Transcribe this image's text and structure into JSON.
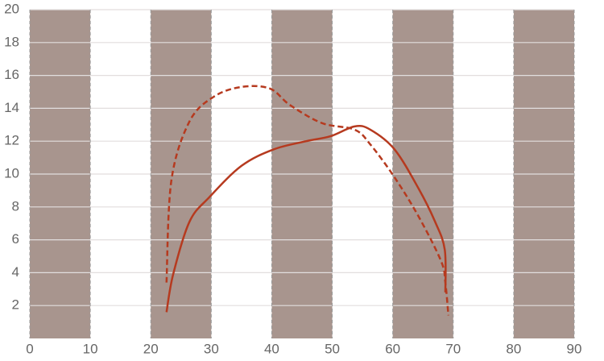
{
  "chart_data": {
    "type": "line",
    "xlim": [
      0,
      90
    ],
    "xticks": [
      0,
      10,
      20,
      30,
      40,
      50,
      60,
      70,
      80,
      90
    ],
    "ylim": [
      0,
      20
    ],
    "yticks": [
      2,
      4,
      6,
      8,
      10,
      12,
      14,
      16,
      18,
      20
    ],
    "grid": true,
    "band_color": "#a8958e",
    "series": [
      {
        "color": "#b63a1f",
        "dashed": false,
        "x": [
          22.6,
          23.7,
          26.4,
          29.7,
          35.0,
          40.3,
          45.7,
          49.7,
          53.7,
          56.3,
          60.3,
          64.3,
          67.0,
          68.6,
          68.7
        ],
        "values": [
          1.6,
          3.9,
          7.1,
          8.6,
          10.5,
          11.5,
          12.0,
          12.3,
          12.9,
          12.7,
          11.5,
          9.1,
          7.1,
          5.4,
          2.8
        ]
      },
      {
        "color": "#b63a1f",
        "dashed": true,
        "x": [
          22.6,
          23.4,
          26.4,
          30.4,
          35.0,
          39.7,
          43.0,
          48.3,
          53.7,
          56.3,
          60.3,
          64.3,
          68.0,
          68.7,
          69.2
        ],
        "values": [
          3.4,
          9.6,
          13.2,
          14.7,
          15.3,
          15.2,
          14.2,
          13.1,
          12.7,
          11.8,
          9.8,
          7.4,
          4.7,
          3.4,
          1.4
        ]
      }
    ]
  }
}
